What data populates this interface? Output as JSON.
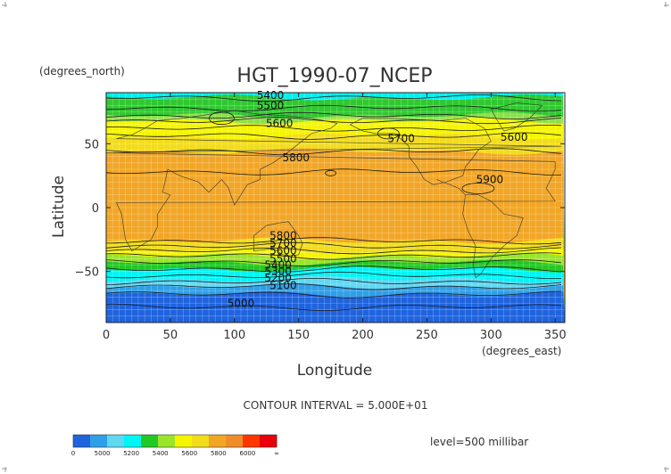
{
  "chart_data": {
    "type": "contour",
    "title": "HGT_1990-07_NCEP",
    "xlabel": "Longitude",
    "ylabel": "Latitude",
    "x_units": "(degrees_east)",
    "y_units": "(degrees_north)",
    "xlim": [
      0,
      357.5
    ],
    "ylim": [
      -90,
      90
    ],
    "x_ticks": [
      0,
      50,
      100,
      150,
      200,
      250,
      300,
      350
    ],
    "y_ticks": [
      -50,
      0,
      50
    ],
    "contour_interval_label": "CONTOUR INTERVAL = 5.000E+01",
    "level_label": "level=500 millibar",
    "contour_labels": [
      {
        "text": "5400",
        "lon": 128,
        "lat": 88
      },
      {
        "text": "5500",
        "lon": 128,
        "lat": 80
      },
      {
        "text": "5600",
        "lon": 135,
        "lat": 66
      },
      {
        "text": "5700",
        "lon": 230,
        "lat": 54
      },
      {
        "text": "5600",
        "lon": 318,
        "lat": 55
      },
      {
        "text": "5800",
        "lon": 148,
        "lat": 39
      },
      {
        "text": "5900",
        "lon": 299,
        "lat": 22
      },
      {
        "text": "5800",
        "lon": 138,
        "lat": -22
      },
      {
        "text": "5700",
        "lon": 138,
        "lat": -28
      },
      {
        "text": "5600",
        "lon": 138,
        "lat": -34
      },
      {
        "text": "5500",
        "lon": 138,
        "lat": -40
      },
      {
        "text": "5400",
        "lon": 134,
        "lat": -45
      },
      {
        "text": "5300",
        "lon": 134,
        "lat": -50
      },
      {
        "text": "5200",
        "lon": 134,
        "lat": -55
      },
      {
        "text": "5100",
        "lon": 138,
        "lat": -61
      },
      {
        "text": "5000",
        "lon": 105,
        "lat": -75
      }
    ],
    "colorbar": {
      "labels": [
        "0",
        "5000",
        "5200",
        "5400",
        "5600",
        "5800",
        "6000",
        "∞"
      ],
      "colors": [
        "#1f63dd",
        "#2f9fe8",
        "#5fd8f2",
        "#00f5f5",
        "#22c826",
        "#9ae52a",
        "#f5f500",
        "#f0dc19",
        "#f2a626",
        "#f28c28",
        "#ff3600",
        "#e8000a"
      ]
    },
    "bands": [
      {
        "lat": 90,
        "color": "#00f0f0"
      },
      {
        "lat": 86,
        "color": "#30c830"
      },
      {
        "lat": 72,
        "color": "#8ee04a"
      },
      {
        "lat": 68,
        "color": "#f5f500"
      },
      {
        "lat": 56,
        "color": "#f2dc1c"
      },
      {
        "lat": 44,
        "color": "#f2a626"
      },
      {
        "lat": -26,
        "color": "#f2dc1c"
      },
      {
        "lat": -34,
        "color": "#f5f500"
      },
      {
        "lat": -38,
        "color": "#9ae52a"
      },
      {
        "lat": -43,
        "color": "#22c826"
      },
      {
        "lat": -48,
        "color": "#00f5f5"
      },
      {
        "lat": -56,
        "color": "#5fd8f2"
      },
      {
        "lat": -62,
        "color": "#2f9fe8"
      },
      {
        "lat": -68,
        "color": "#1f63dd"
      }
    ]
  }
}
